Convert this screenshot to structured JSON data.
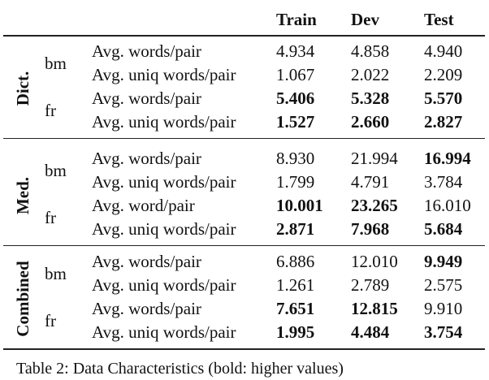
{
  "header": {
    "columns": [
      "Train",
      "Dev",
      "Test"
    ]
  },
  "groups": [
    {
      "name": "Dict.",
      "subgroups": [
        {
          "name": "bm",
          "rows": [
            {
              "metric": "Avg. words/pair",
              "values": [
                "4.934",
                "4.858",
                "4.940"
              ],
              "bold": [
                false,
                false,
                false
              ]
            },
            {
              "metric": "Avg. uniq words/pair",
              "values": [
                "1.067",
                "2.022",
                "2.209"
              ],
              "bold": [
                false,
                false,
                false
              ]
            }
          ]
        },
        {
          "name": "fr",
          "rows": [
            {
              "metric": "Avg. words/pair",
              "values": [
                "5.406",
                "5.328",
                "5.570"
              ],
              "bold": [
                true,
                true,
                true
              ]
            },
            {
              "metric": "Avg. uniq words/pair",
              "values": [
                "1.527",
                "2.660",
                "2.827"
              ],
              "bold": [
                true,
                true,
                true
              ]
            }
          ]
        }
      ]
    },
    {
      "name": "Med.",
      "subgroups": [
        {
          "name": "bm",
          "rows": [
            {
              "metric": "Avg. words/pair",
              "values": [
                "8.930",
                "21.994",
                "16.994"
              ],
              "bold": [
                false,
                false,
                true
              ]
            },
            {
              "metric": "Avg. uniq words/pair",
              "values": [
                "1.799",
                "4.791",
                "3.784"
              ],
              "bold": [
                false,
                false,
                false
              ]
            }
          ]
        },
        {
          "name": "fr",
          "rows": [
            {
              "metric": "Avg. word/pair",
              "values": [
                "10.001",
                "23.265",
                "16.010"
              ],
              "bold": [
                true,
                true,
                false
              ]
            },
            {
              "metric": "Avg. uniq words/pair",
              "values": [
                "2.871",
                "7.968",
                "5.684"
              ],
              "bold": [
                true,
                true,
                true
              ]
            }
          ]
        }
      ]
    },
    {
      "name": "Combined",
      "subgroups": [
        {
          "name": "bm",
          "rows": [
            {
              "metric": "Avg. words/pair",
              "values": [
                "6.886",
                "12.010",
                "9.949"
              ],
              "bold": [
                false,
                false,
                true
              ]
            },
            {
              "metric": "Avg. uniq words/pair",
              "values": [
                "1.261",
                "2.789",
                "2.575"
              ],
              "bold": [
                false,
                false,
                false
              ]
            }
          ]
        },
        {
          "name": "fr",
          "rows": [
            {
              "metric": "Avg. words/pair",
              "values": [
                "7.651",
                "12.815",
                "9.910"
              ],
              "bold": [
                true,
                true,
                false
              ]
            },
            {
              "metric": "Avg. uniq words/pair",
              "values": [
                "1.995",
                "4.484",
                "3.754"
              ],
              "bold": [
                true,
                true,
                true
              ]
            }
          ]
        }
      ]
    }
  ],
  "caption": "Table 2: Data Characteristics (bold: higher values)"
}
